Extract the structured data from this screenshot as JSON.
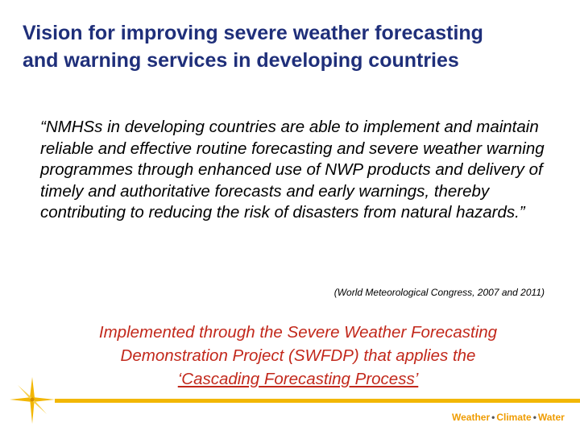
{
  "slide": {
    "title_line1": "Vision for improving severe weather forecasting",
    "title_line2": "and warning services in developing countries",
    "quote": "“NMHSs in developing countries are able to implement and maintain reliable and effective routine forecasting and severe weather warning programmes through enhanced use of NWP products and delivery of timely and authoritative forecasts and early warnings, thereby contributing to reducing the risk of disasters from natural hazards.”",
    "citation": "(World Meteorological Congress, 2007 and 2011)",
    "note_line1": "Implemented through the Severe Weather Forecasting",
    "note_line2": "Demonstration Project (SWFDP) that applies the",
    "note_line3": "‘Cascading Forecasting Process’"
  },
  "footer": {
    "tagline_weather": "Weather",
    "tagline_climate": "Climate",
    "tagline_water": "Water",
    "separator": "•"
  },
  "colors": {
    "title": "#1f2f7a",
    "note": "#c2281b",
    "rule": "#f2b705",
    "tagline": "#ef9c00"
  },
  "icons": [
    "compass-star-icon"
  ]
}
